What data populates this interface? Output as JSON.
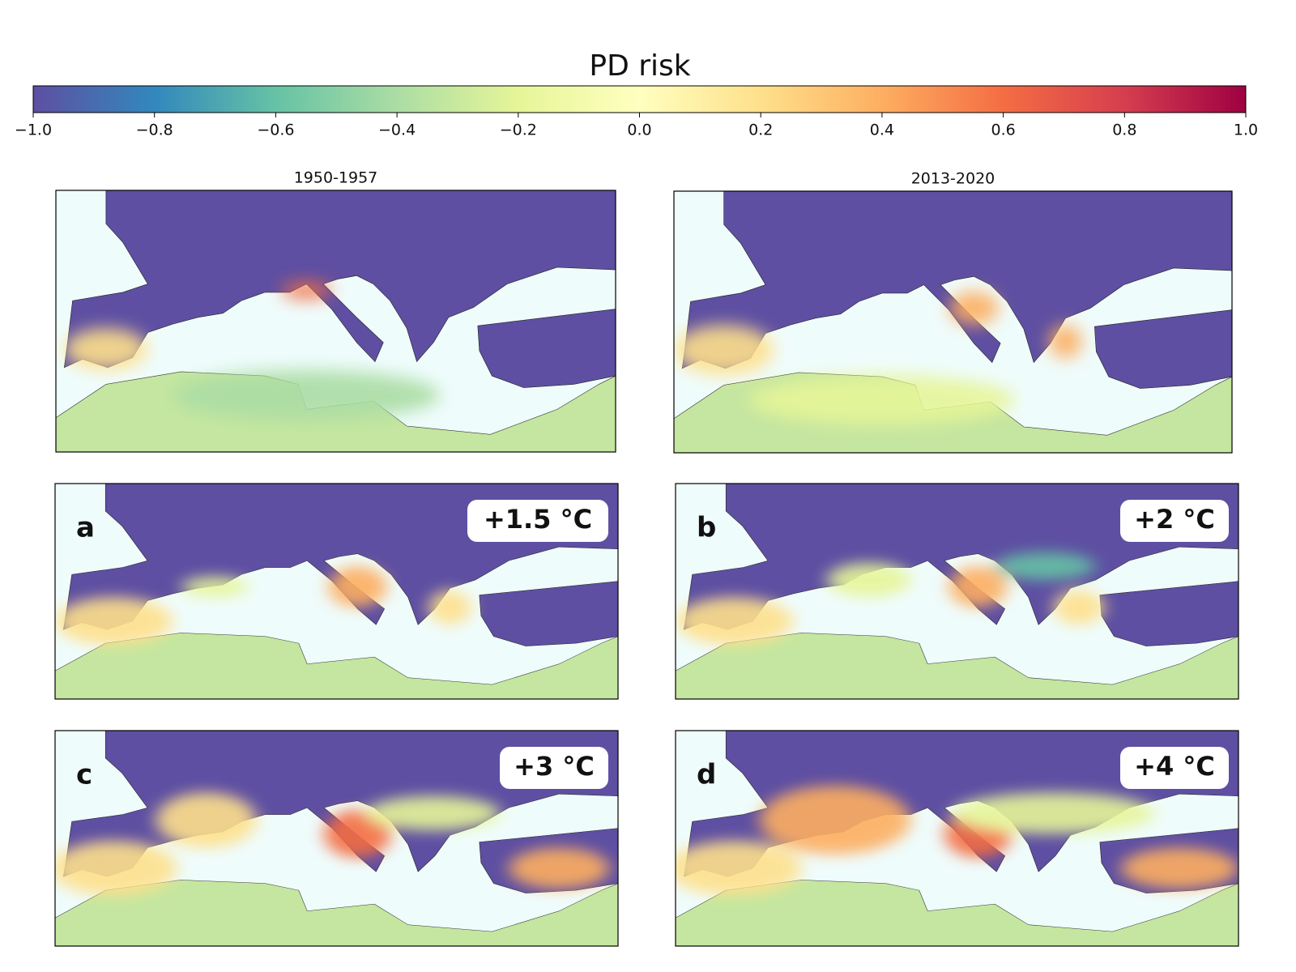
{
  "colorbar": {
    "title": "PD risk",
    "lim": [
      -1,
      1
    ],
    "ticks": [
      {
        "value": -1,
        "label": "−1.0"
      },
      {
        "value": -0.8,
        "label": "−0.8"
      },
      {
        "value": -0.6,
        "label": "−0.6"
      },
      {
        "value": -0.4,
        "label": "−0.4"
      },
      {
        "value": -0.2,
        "label": "−0.2"
      },
      {
        "value": 0,
        "label": "0.0"
      },
      0.2,
      0.4,
      0.6,
      0.8,
      {
        "value": 1,
        "label": "1.0"
      }
    ]
  },
  "panels": [
    {
      "title": "1950-1957"
    },
    {
      "title": "2013-2020"
    },
    {
      "letter": "a",
      "label": "+1.5 °C"
    },
    {
      "letter": "b",
      "label": "+2 °C"
    },
    {
      "letter": "c",
      "label": "+3 °C"
    },
    {
      "letter": "d",
      "label": "+4 °C"
    }
  ]
}
